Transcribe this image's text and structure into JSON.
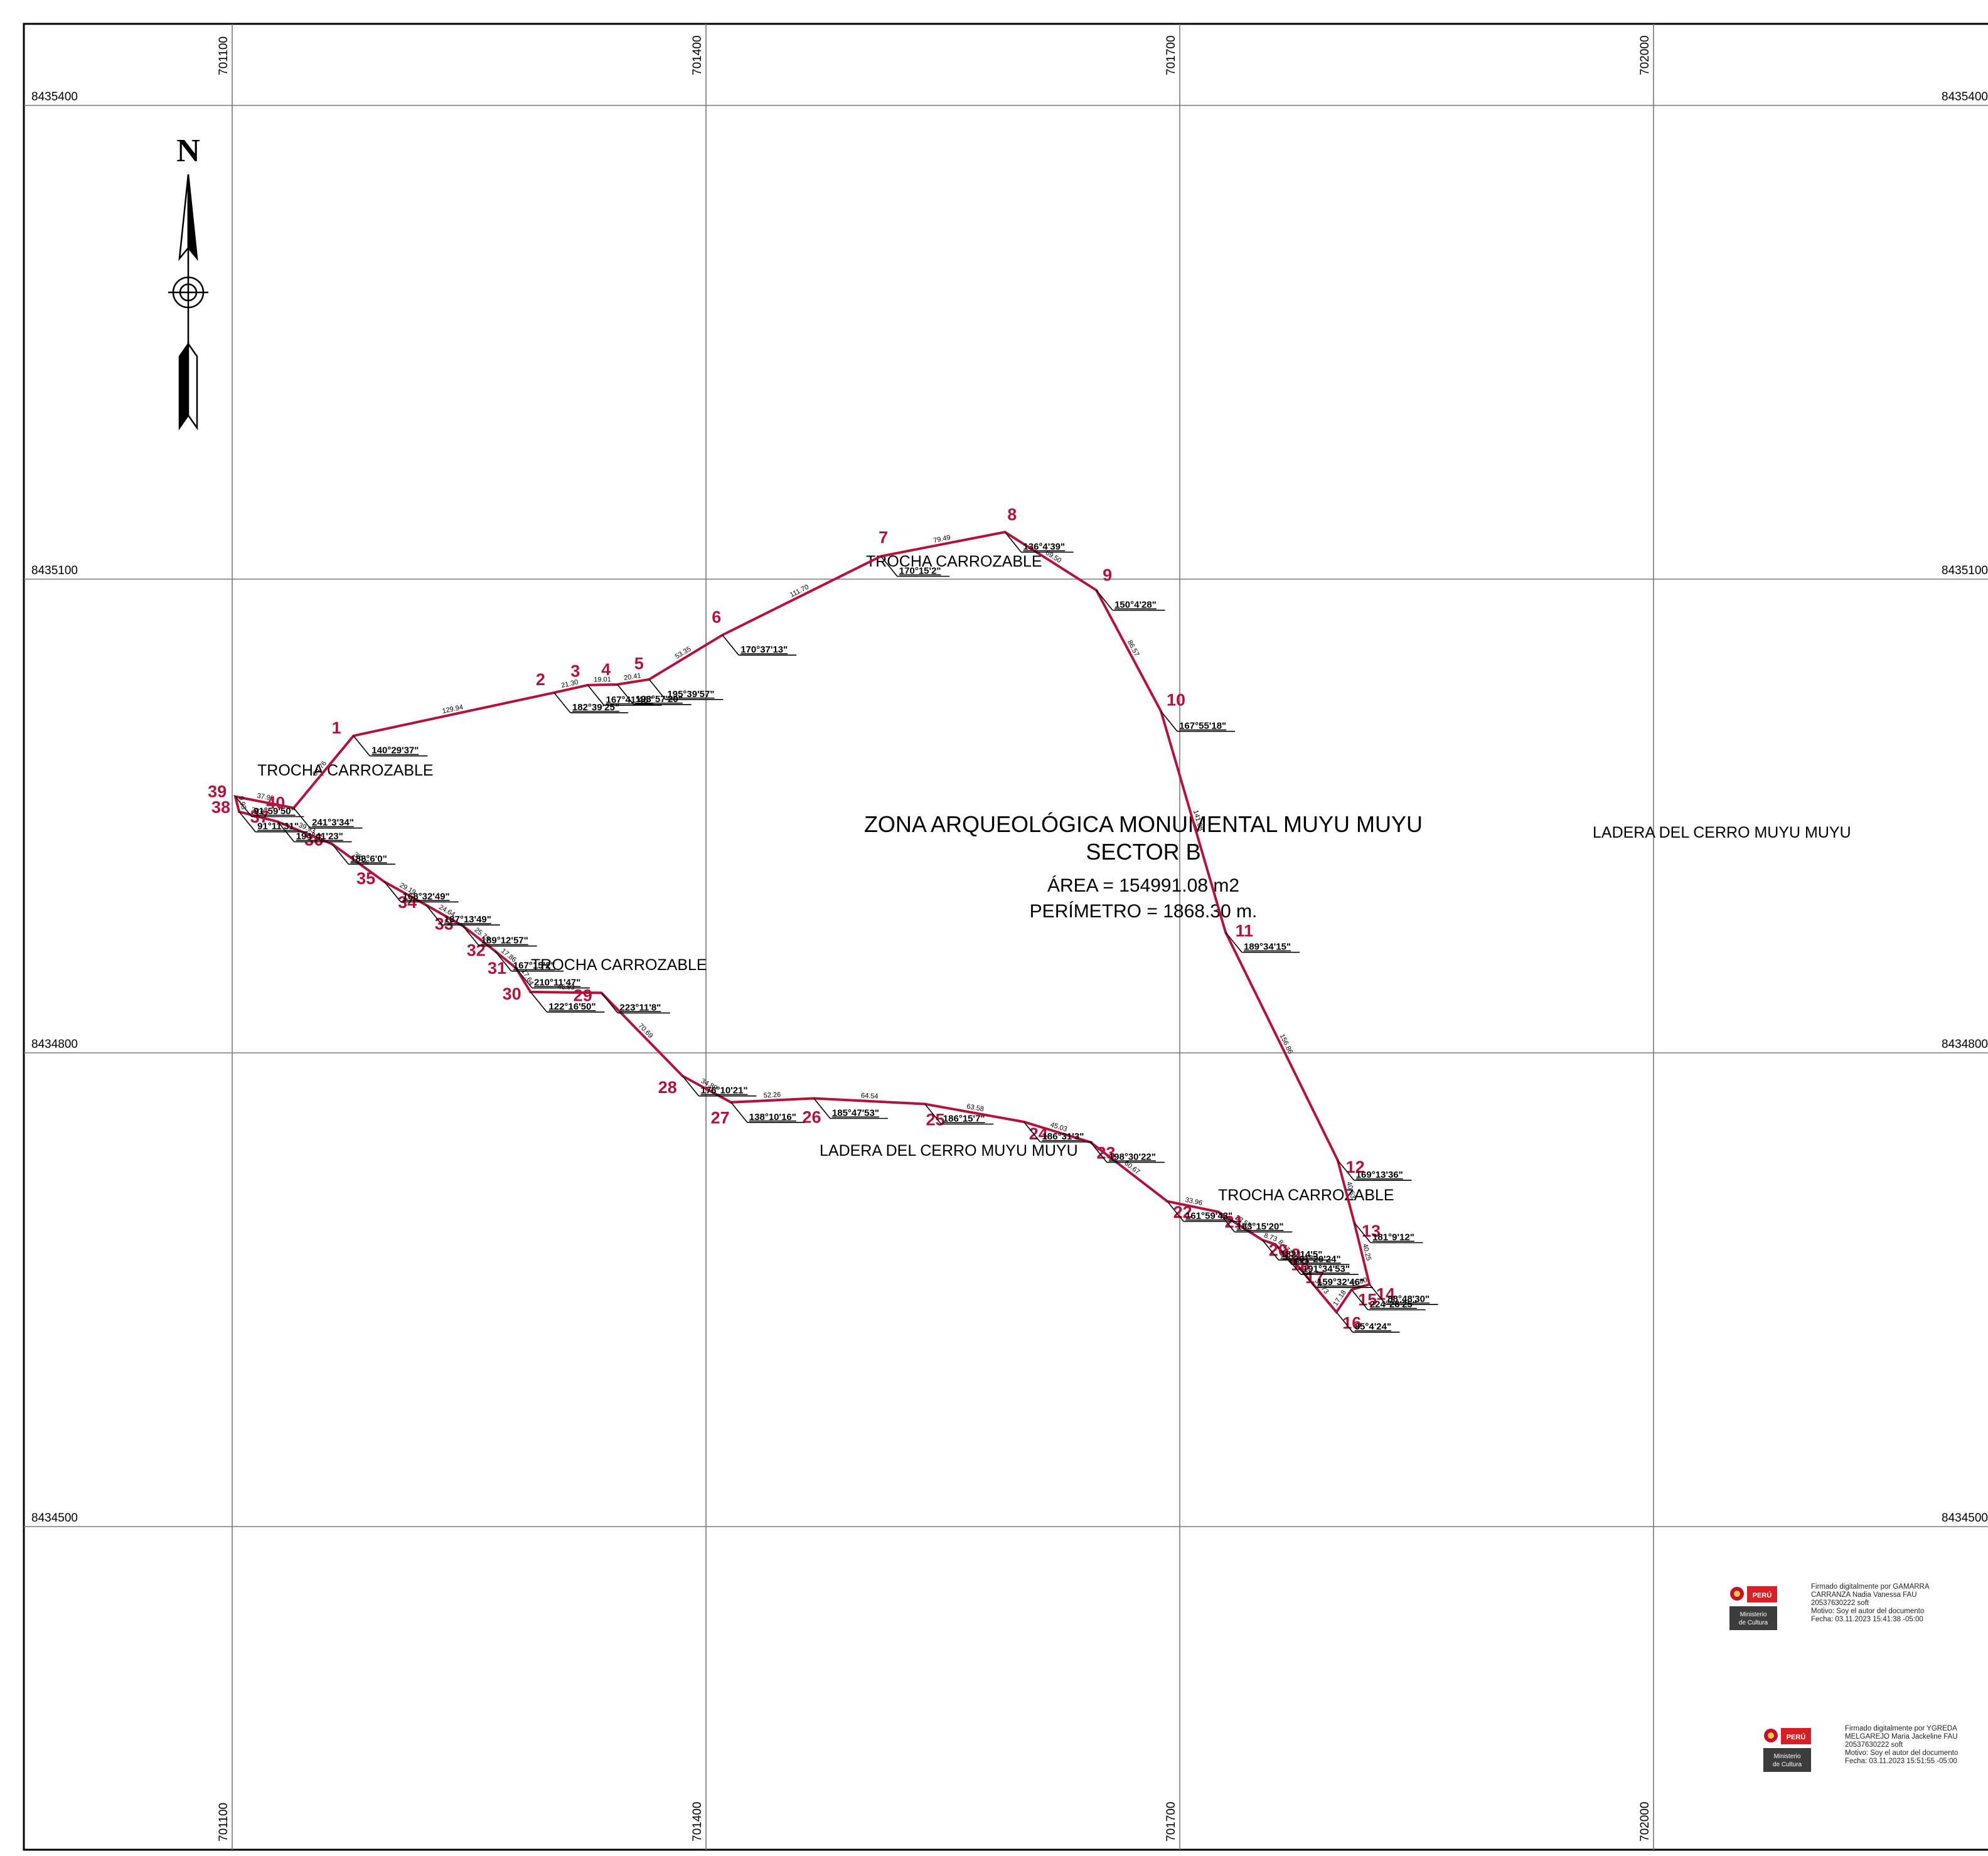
{
  "map": {
    "title": "ZONA ARQUEOLÓGICA MONUMENTAL MUYU MUYU",
    "subtitle": "SECTOR B",
    "area": "ÁREA = 154991.08 m2",
    "perimeter": "PERÍMETRO = 1868.30 m.",
    "north_label": "N",
    "north_icon": "north-arrow-icon",
    "grid_easting": [
      "701100",
      "701400",
      "701700",
      "702000"
    ],
    "grid_northing": [
      "8435400",
      "8435100",
      "8434800",
      "8434500"
    ],
    "labels": [
      {
        "name": "label-trocha-carrozable-north",
        "text": "TROCHA CARROZABLE"
      },
      {
        "name": "label-trocha-carrozable-west",
        "text": "TROCHA CARROZABLE"
      },
      {
        "name": "label-trocha-carrozable-southwest",
        "text": "TROCHA CARROZABLE"
      },
      {
        "name": "label-trocha-carrozable-southeast",
        "text": "TROCHA CARROZABLE"
      },
      {
        "name": "label-ladera-cerro-east",
        "text": "LADERA DEL CERRO MUYU MUYU"
      },
      {
        "name": "label-ladera-cerro-south",
        "text": "LADERA DEL CERRO MUYU MUYU"
      }
    ],
    "boundary_color": "#b3123c",
    "vertices": [
      {
        "id": "1",
        "east": 701176.8,
        "north": 8435000.8,
        "angle": "140°29'37\""
      },
      {
        "id": "2",
        "east": 701303.8,
        "north": 8435028.1,
        "angle": "182°39'25\""
      },
      {
        "id": "3",
        "east": 701325.1,
        "north": 8435032.9,
        "angle": "167°41'48\""
      },
      {
        "id": "4",
        "east": 701343.9,
        "north": 8435033.3,
        "angle": "193°57'20\""
      },
      {
        "id": "5",
        "east": 701364.0,
        "north": 8435036.5,
        "angle": "195°39'57\""
      },
      {
        "id": "6",
        "east": 701410.4,
        "north": 8435064.6,
        "angle": "170°37'13\""
      },
      {
        "id": "7",
        "east": 701510.8,
        "north": 8435114.5,
        "angle": "170°15'2\""
      },
      {
        "id": "8",
        "east": 701589.3,
        "north": 8435129.8,
        "angle": "136°4'39\""
      },
      {
        "id": "9",
        "east": 701647.2,
        "north": 8435093.0,
        "angle": "150°4'28\""
      },
      {
        "id": "10",
        "east": 701688.1,
        "north": 8435016.3,
        "angle": "167°55'18\""
      },
      {
        "id": "11",
        "east": 701729.0,
        "north": 8434876.4,
        "angle": "189°34'15\""
      },
      {
        "id": "12",
        "east": 701800.0,
        "north": 8434732.0,
        "angle": "169°13'36\""
      },
      {
        "id": "13",
        "east": 701810.5,
        "north": 8434692.5,
        "angle": "181°9'12\""
      },
      {
        "id": "14",
        "east": 701820.1,
        "north": 8434653.4,
        "angle": "88°48'30\""
      },
      {
        "id": "15",
        "east": 701808.8,
        "north": 8434650.0,
        "angle": "224°26'25\""
      },
      {
        "id": "16",
        "east": 701799.2,
        "north": 8434635.8,
        "angle": "85°4'24\""
      },
      {
        "id": "17",
        "east": 701775.5,
        "north": 8434664.2,
        "angle": "159°32'46\""
      },
      {
        "id": "18",
        "east": 701766.3,
        "north": 8434672.4,
        "angle": "191°34'53\""
      },
      {
        "id": "19",
        "east": 701760.6,
        "north": 8434678.7,
        "angle": "201°20'24\""
      },
      {
        "id": "20",
        "east": 701752.3,
        "north": 8434681.5,
        "angle": "182°14'5\""
      },
      {
        "id": "21",
        "east": 701724.4,
        "north": 8434699.3,
        "angle": "183°15'20\""
      },
      {
        "id": "22",
        "east": 701692.1,
        "north": 8434706.0,
        "angle": "161°59'43\""
      },
      {
        "id": "23",
        "east": 701643.5,
        "north": 8434743.4,
        "angle": "198°30'22\""
      },
      {
        "id": "24",
        "east": 701601.3,
        "north": 8434756.3,
        "angle": "186°31'3\""
      },
      {
        "id": "25",
        "east": 701538.6,
        "north": 8434767.6,
        "angle": "186°15'7\""
      },
      {
        "id": "26",
        "east": 701468.3,
        "north": 8434771.2,
        "angle": "185°47'53\""
      },
      {
        "id": "27",
        "east": 701415.8,
        "north": 8434768.7,
        "angle": "138°10'16\""
      },
      {
        "id": "28",
        "east": 701385.1,
        "north": 8434785.4,
        "angle": "176°10'21\""
      },
      {
        "id": "29",
        "east": 701333.8,
        "north": 8434838.0,
        "angle": "223°11'8\""
      },
      {
        "id": "30",
        "east": 701288.9,
        "north": 8434838.6,
        "angle": "122°16'50\""
      },
      {
        "id": "31",
        "east": 701279.6,
        "north": 8434853.8,
        "angle": "210°11'47\""
      },
      {
        "id": "32",
        "east": 701266.4,
        "north": 8434864.5,
        "angle": "167°15'2\""
      },
      {
        "id": "33",
        "east": 701246.1,
        "north": 8434880.4,
        "angle": "189°12'57\""
      },
      {
        "id": "34",
        "east": 701222.7,
        "north": 8434893.7,
        "angle": "187°13'49\""
      },
      {
        "id": "35",
        "east": 701196.4,
        "north": 8434908.3,
        "angle": "168°32'49\""
      },
      {
        "id": "36",
        "east": 701163.3,
        "north": 8434932.2,
        "angle": "188°6'0\""
      },
      {
        "id": "37",
        "east": 701128.9,
        "north": 8434946.4,
        "angle": "194°41'23\""
      },
      {
        "id": "38",
        "east": 701104.4,
        "north": 8434952.7,
        "angle": "91°11'31\""
      },
      {
        "id": "39",
        "east": 701102.0,
        "north": 8434962.3,
        "angle": "91°59'50\""
      },
      {
        "id": "40",
        "east": 701139.0,
        "north": 8434955.1,
        "angle": "241°3'34\""
      }
    ],
    "distances": [
      "129.94",
      "21.30",
      "19.01",
      "20.41",
      "53.35",
      "111.70",
      "79.49",
      "69.50",
      "86.57",
      "141.08",
      "156.86",
      "40.63",
      "40.25",
      "11.80",
      "17.18",
      "36.73",
      "12.56",
      "8.47",
      "8.73",
      "32.57",
      "33.96",
      "60.67",
      "45.03",
      "63.58",
      "64.54",
      "52.26",
      "34.89",
      "70.69",
      "46.93",
      "17.64",
      "17.86",
      "25.79",
      "24.64",
      "29.19",
      "38.06",
      "39.93",
      "20.22",
      "9.93",
      "37.90",
      "64.76"
    ],
    "signatures": [
      {
        "logo_text": "PERÚ",
        "logo_sub": "Ministerio de Cultura",
        "lines": [
          "Firmado digitalmente por GAMARRA",
          "CARRANZA Nadia Vanessa FAU",
          "20537630222 soft",
          "Motivo: Soy el autor del documento",
          "Fecha: 03.11.2023 15:41:38 -05:00"
        ]
      },
      {
        "logo_text": "PERÚ",
        "logo_sub": "Ministerio de Cultura",
        "lines": [
          "Firmado digitalmente por YGREDA",
          "MELGAREJO Maria Jackeline FAU",
          "20537630222 soft",
          "Motivo: Soy el autor del documento",
          "Fecha: 03.11.2023 15:51:55 -05:00"
        ]
      }
    ]
  }
}
